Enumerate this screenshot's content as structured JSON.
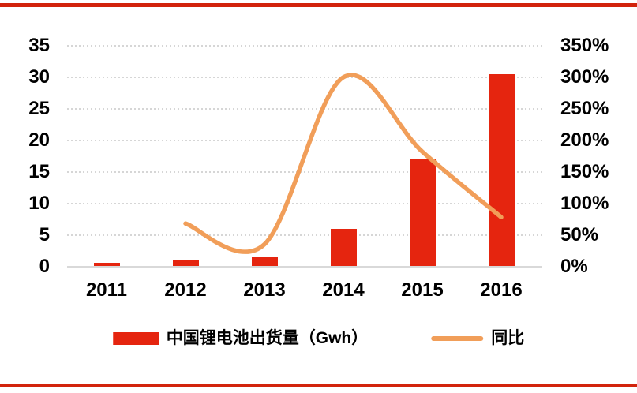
{
  "decor": {
    "top_rule_color": "#d2230c",
    "bottom_rule_color": "#d2230c",
    "background": "#ffffff",
    "grid_color": "#d6d6d6",
    "axis_line_color": "#d9d9d9",
    "text_color": "#000000"
  },
  "chart_data": {
    "type": "bar+line combo",
    "title": "",
    "categories": [
      "2011",
      "2012",
      "2013",
      "2014",
      "2015",
      "2016"
    ],
    "series": [
      {
        "name": "中国锂电池出货量（Gwh）",
        "type": "bar",
        "axis": "left",
        "unit": "Gwh",
        "color": "#e5250f",
        "values": [
          0.6,
          1.0,
          1.5,
          5.9,
          17.0,
          30.5
        ]
      },
      {
        "name": "同比",
        "type": "line",
        "axis": "right",
        "unit": "%",
        "color": "#f19e59",
        "smooth": true,
        "values": [
          null,
          68,
          35,
          300,
          182,
          78
        ]
      }
    ],
    "left_axis": {
      "min": 0,
      "max": 35,
      "step": 5,
      "ticks": [
        "35",
        "30",
        "25",
        "20",
        "15",
        "10",
        "5",
        "0"
      ]
    },
    "right_axis": {
      "min": 0,
      "max": 350,
      "step": 50,
      "unit": "%",
      "ticks": [
        "350%",
        "300%",
        "250%",
        "200%",
        "150%",
        "100%",
        "50%",
        "0%"
      ]
    },
    "grid": "horizontal dotted",
    "legend_position": "bottom"
  },
  "legend": {
    "items": [
      {
        "label": "中国锂电池出货量（Gwh）",
        "swatch": "bar"
      },
      {
        "label": "同比",
        "swatch": "line"
      }
    ]
  }
}
